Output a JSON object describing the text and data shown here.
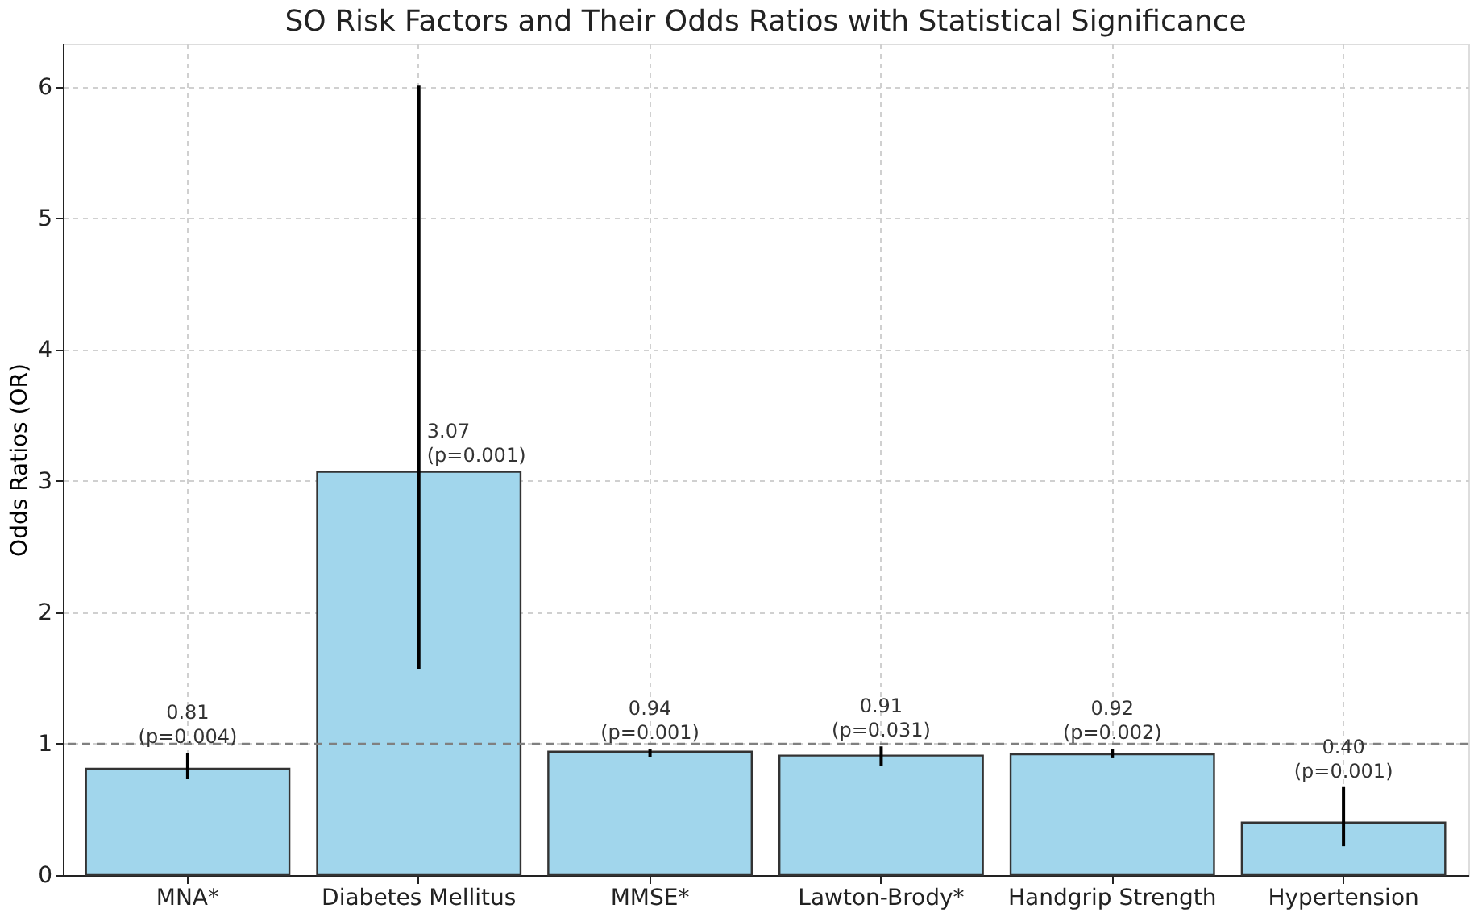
{
  "chart_data": {
    "type": "bar",
    "title": "SO Risk Factors and Their Odds Ratios with Statistical Significance",
    "ylabel": "Odds Ratios (OR)",
    "categories": [
      "MNA*",
      "Diabetes Mellitus",
      "MMSE*",
      "Lawton-Brody*",
      "Handgrip Strength",
      "Hypertension"
    ],
    "values": [
      0.81,
      3.07,
      0.94,
      0.91,
      0.92,
      0.4
    ],
    "value_labels": [
      "0.81\n(p=0.004)",
      "3.07\n(p=0.001)",
      "0.94\n(p=0.001)",
      "0.91\n(p=0.031)",
      "0.92\n(p=0.002)",
      "0.40\n(p=0.001)"
    ],
    "errors": [
      [
        0.73,
        0.93
      ],
      [
        1.57,
        6.01
      ],
      [
        0.9,
        0.96
      ],
      [
        0.83,
        0.98
      ],
      [
        0.89,
        0.96
      ],
      [
        0.22,
        0.67
      ]
    ],
    "color": "#a1d6ec",
    "ylim": [
      0,
      6.33
    ],
    "yticks": [
      0,
      1,
      2,
      3,
      4,
      5,
      6
    ],
    "ref_lines": [
      {
        "axis": "y",
        "value": 1,
        "color": "#808080",
        "line_style": "dashed"
      }
    ],
    "grid": true
  }
}
